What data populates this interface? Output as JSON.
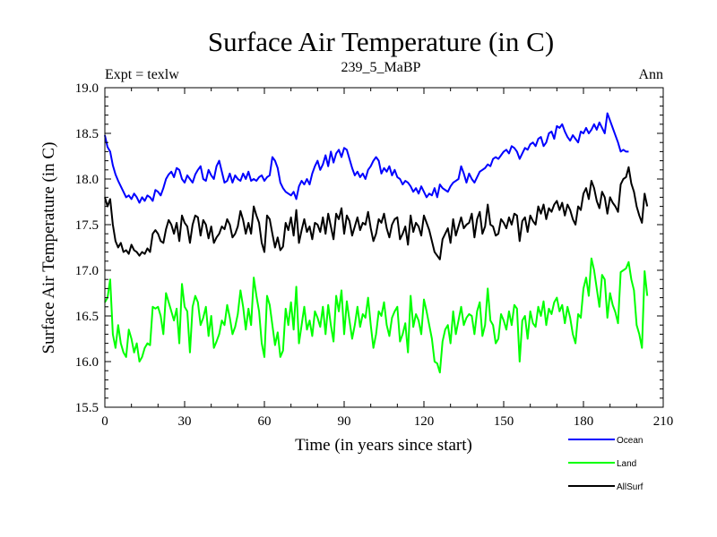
{
  "chart_data": {
    "type": "line",
    "title": "Surface Air Temperature (in C)",
    "subtitle": "239_5_MaBP",
    "left_note": "Expt = texlw",
    "right_note": "Ann",
    "xlabel": "Time (in years since start)",
    "ylabel": "Surface Air Temperature (in C)",
    "xlim": [
      0,
      210
    ],
    "ylim": [
      15.5,
      19.0
    ],
    "xticks": [
      0,
      30,
      60,
      90,
      120,
      150,
      180,
      210
    ],
    "yticks": [
      15.5,
      16.0,
      16.5,
      17.0,
      17.5,
      18.0,
      18.5,
      19.0
    ],
    "xtick_labels": [
      "0",
      "30",
      "60",
      "90",
      "120",
      "150",
      "180",
      "210"
    ],
    "ytick_labels": [
      "15.5",
      "16.0",
      "16.5",
      "17.0",
      "17.5",
      "18.0",
      "18.5",
      "19.0"
    ],
    "grid": false,
    "legend_position": "bottom-right",
    "series": [
      {
        "name": "Ocean",
        "color": "#0000ff",
        "x_start": 0,
        "x_step": 1,
        "values": [
          18.48,
          18.35,
          18.3,
          18.15,
          18.05,
          17.98,
          17.92,
          17.86,
          17.8,
          17.82,
          17.78,
          17.84,
          17.8,
          17.74,
          17.8,
          17.76,
          17.82,
          17.8,
          17.76,
          17.88,
          17.86,
          17.82,
          17.9,
          18.0,
          18.05,
          18.08,
          18.02,
          18.12,
          18.1,
          18.0,
          17.96,
          18.04,
          18.0,
          17.96,
          18.05,
          18.1,
          18.14,
          18.0,
          17.98,
          18.1,
          18.04,
          18.0,
          18.14,
          18.2,
          18.08,
          17.96,
          17.98,
          18.06,
          17.96,
          18.04,
          18.0,
          17.98,
          18.06,
          18.0,
          18.08,
          17.98,
          18.0,
          17.98,
          18.02,
          18.04,
          17.98,
          18.02,
          18.04,
          18.24,
          18.2,
          18.12,
          17.96,
          17.9,
          17.86,
          17.84,
          17.82,
          17.86,
          17.78,
          17.92,
          17.98,
          17.94,
          18.0,
          17.94,
          18.06,
          18.14,
          18.2,
          18.1,
          18.16,
          18.26,
          18.14,
          18.3,
          18.18,
          18.28,
          18.32,
          18.24,
          18.34,
          18.32,
          18.22,
          18.12,
          18.04,
          18.08,
          18.02,
          18.06,
          18.0,
          18.1,
          18.14,
          18.2,
          18.24,
          18.2,
          18.06,
          18.12,
          18.08,
          18.14,
          18.04,
          18.1,
          18.02,
          18.0,
          17.94,
          17.98,
          17.96,
          17.92,
          17.86,
          17.9,
          17.84,
          17.92,
          17.86,
          17.8,
          17.84,
          17.82,
          17.9,
          17.8,
          17.94,
          17.9,
          17.88,
          17.86,
          17.92,
          17.96,
          17.98,
          18.0,
          18.14,
          18.06,
          17.96,
          18.06,
          18.0,
          17.96,
          18.02,
          18.08,
          18.1,
          18.12,
          18.16,
          18.14,
          18.22,
          18.24,
          18.22,
          18.26,
          18.3,
          18.32,
          18.28,
          18.36,
          18.34,
          18.3,
          18.22,
          18.28,
          18.34,
          18.32,
          18.38,
          18.4,
          18.36,
          18.44,
          18.46,
          18.36,
          18.4,
          18.5,
          18.52,
          18.44,
          18.58,
          18.56,
          18.6,
          18.52,
          18.46,
          18.42,
          18.48,
          18.44,
          18.4,
          18.52,
          18.5,
          18.56,
          18.5,
          18.54,
          18.6,
          18.54,
          18.62,
          18.56,
          18.5,
          18.72,
          18.64,
          18.56,
          18.48,
          18.4,
          18.3,
          18.32,
          18.3,
          18.3
        ]
      },
      {
        "name": "Land",
        "color": "#00ff00",
        "x_start": 0,
        "x_step": 1,
        "values": [
          16.65,
          16.7,
          16.9,
          16.3,
          16.15,
          16.4,
          16.2,
          16.1,
          16.05,
          16.35,
          16.25,
          16.1,
          16.2,
          16.0,
          16.05,
          16.15,
          16.2,
          16.18,
          16.6,
          16.58,
          16.6,
          16.5,
          16.3,
          16.75,
          16.65,
          16.55,
          16.45,
          16.58,
          16.2,
          16.85,
          16.6,
          16.55,
          16.1,
          16.6,
          16.72,
          16.65,
          16.4,
          16.48,
          16.6,
          16.28,
          16.5,
          16.15,
          16.22,
          16.3,
          16.45,
          16.4,
          16.62,
          16.48,
          16.3,
          16.38,
          16.52,
          16.78,
          16.6,
          16.35,
          16.58,
          16.4,
          16.92,
          16.72,
          16.55,
          16.2,
          16.05,
          16.72,
          16.62,
          16.4,
          16.18,
          16.32,
          16.05,
          16.12,
          16.58,
          16.4,
          16.65,
          16.35,
          16.82,
          16.2,
          16.4,
          16.6,
          16.35,
          16.45,
          16.28,
          16.55,
          16.48,
          16.38,
          16.6,
          16.3,
          16.62,
          16.4,
          16.22,
          16.72,
          16.55,
          16.78,
          16.3,
          16.66,
          16.45,
          16.25,
          16.4,
          16.6,
          16.38,
          16.52,
          16.48,
          16.7,
          16.4,
          16.15,
          16.3,
          16.55,
          16.5,
          16.65,
          16.4,
          16.28,
          16.48,
          16.55,
          16.6,
          16.22,
          16.3,
          16.42,
          16.1,
          16.72,
          16.38,
          16.52,
          16.45,
          16.3,
          16.68,
          16.55,
          16.4,
          16.25,
          16.0,
          15.98,
          15.88,
          16.22,
          16.35,
          16.4,
          16.2,
          16.55,
          16.3,
          16.45,
          16.6,
          16.4,
          16.48,
          16.52,
          16.5,
          16.3,
          16.55,
          16.65,
          16.28,
          16.4,
          16.8,
          16.45,
          16.4,
          16.2,
          16.25,
          16.52,
          16.45,
          16.35,
          16.55,
          16.4,
          16.62,
          16.58,
          16.0,
          16.45,
          16.5,
          16.25,
          16.55,
          16.42,
          16.38,
          16.6,
          16.5,
          16.66,
          16.4,
          16.58,
          16.52,
          16.65,
          16.7,
          16.55,
          16.62,
          16.42,
          16.6,
          16.48,
          16.3,
          16.2,
          16.52,
          16.48,
          16.8,
          16.92,
          16.72,
          17.13,
          17.0,
          16.8,
          16.6,
          16.95,
          16.9,
          16.48,
          16.75,
          16.62,
          16.54,
          16.42,
          16.98,
          17.0,
          17.02,
          17.09,
          16.9,
          16.78,
          16.4,
          16.3,
          16.15,
          16.99,
          16.72
        ]
      },
      {
        "name": "AllSurf",
        "color": "#000000",
        "x_start": 0,
        "x_step": 1,
        "values": [
          17.8,
          17.7,
          17.78,
          17.5,
          17.32,
          17.25,
          17.3,
          17.2,
          17.22,
          17.18,
          17.28,
          17.22,
          17.2,
          17.16,
          17.2,
          17.18,
          17.24,
          17.2,
          17.4,
          17.44,
          17.4,
          17.32,
          17.3,
          17.45,
          17.55,
          17.5,
          17.4,
          17.52,
          17.32,
          17.6,
          17.52,
          17.48,
          17.3,
          17.5,
          17.6,
          17.58,
          17.38,
          17.55,
          17.5,
          17.35,
          17.48,
          17.3,
          17.36,
          17.4,
          17.48,
          17.45,
          17.56,
          17.5,
          17.36,
          17.4,
          17.48,
          17.65,
          17.55,
          17.4,
          17.52,
          17.4,
          17.7,
          17.6,
          17.52,
          17.3,
          17.2,
          17.6,
          17.56,
          17.4,
          17.25,
          17.36,
          17.22,
          17.26,
          17.52,
          17.44,
          17.58,
          17.38,
          17.66,
          17.3,
          17.44,
          17.56,
          17.42,
          17.48,
          17.34,
          17.52,
          17.5,
          17.42,
          17.58,
          17.4,
          17.62,
          17.48,
          17.34,
          17.62,
          17.56,
          17.68,
          17.4,
          17.6,
          17.54,
          17.38,
          17.48,
          17.58,
          17.44,
          17.52,
          17.5,
          17.64,
          17.46,
          17.32,
          17.4,
          17.56,
          17.52,
          17.62,
          17.46,
          17.36,
          17.5,
          17.56,
          17.58,
          17.34,
          17.4,
          17.48,
          17.28,
          17.6,
          17.42,
          17.52,
          17.48,
          17.38,
          17.6,
          17.52,
          17.44,
          17.32,
          17.2,
          17.16,
          17.12,
          17.34,
          17.4,
          17.46,
          17.3,
          17.56,
          17.38,
          17.48,
          17.58,
          17.46,
          17.5,
          17.52,
          17.62,
          17.36,
          17.56,
          17.64,
          17.4,
          17.48,
          17.72,
          17.5,
          17.48,
          17.38,
          17.4,
          17.56,
          17.52,
          17.46,
          17.58,
          17.5,
          17.62,
          17.6,
          17.32,
          17.54,
          17.58,
          17.42,
          17.6,
          17.54,
          17.5,
          17.7,
          17.62,
          17.72,
          17.56,
          17.68,
          17.64,
          17.72,
          17.76,
          17.66,
          17.74,
          17.6,
          17.72,
          17.66,
          17.56,
          17.5,
          17.7,
          17.66,
          17.84,
          17.9,
          17.78,
          17.98,
          17.9,
          17.76,
          17.68,
          17.86,
          17.8,
          17.62,
          17.8,
          17.74,
          17.7,
          17.64,
          17.94,
          18.0,
          18.02,
          18.13,
          17.95,
          17.86,
          17.7,
          17.6,
          17.52,
          17.84,
          17.7
        ]
      }
    ]
  }
}
